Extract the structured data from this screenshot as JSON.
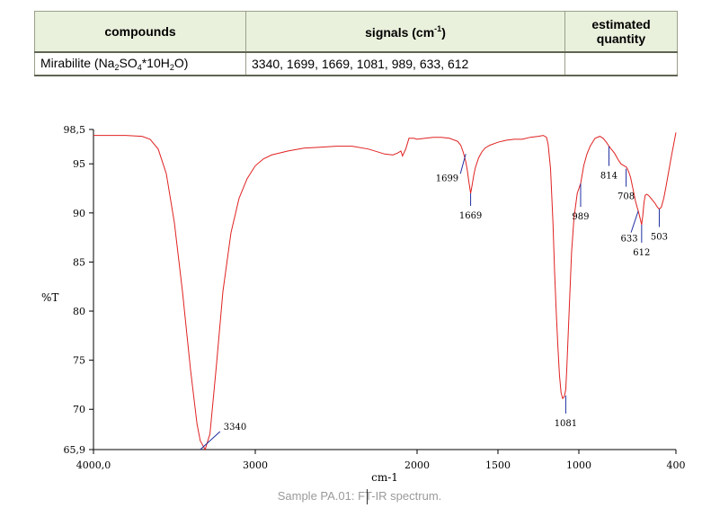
{
  "table": {
    "headers": {
      "compounds": "compounds",
      "signals_text": "signals (cm",
      "signals_sup": "-1",
      "signals_close": ")",
      "estimated_line1": "estimated",
      "estimated_line2": "quantity"
    },
    "row": {
      "compound_parts": [
        "Mirabilite (Na",
        "2",
        "SO",
        "4",
        "*10H",
        "2",
        "O)"
      ],
      "signals": "3340, 1699, 1669, 1081, 989, 633, 612",
      "estimated": ""
    }
  },
  "caption": "Sample PA.01: FT-IR spectrum.",
  "chart_data": {
    "type": "line",
    "title": "",
    "xlabel": "cm-1",
    "ylabel": "%T",
    "xlim": [
      4000,
      400
    ],
    "ylim": [
      65.9,
      98.5
    ],
    "x_reversed": true,
    "grid": false,
    "x_ticks": [
      4000,
      3000,
      2000,
      1500,
      1000,
      400
    ],
    "x_tick_labels": [
      "4000,0",
      "3000",
      "2000",
      "1500",
      "1000",
      "400"
    ],
    "y_ticks": [
      98.5,
      95,
      90,
      85,
      80,
      75,
      70,
      65.9
    ],
    "y_tick_labels": [
      "98,5",
      "95",
      "90",
      "85",
      "80",
      "75",
      "70",
      "65,9"
    ],
    "line_color": "#e02020",
    "marker_color": "#1f2fa0",
    "series": [
      {
        "x": [
          4000,
          3800,
          3700,
          3650,
          3600,
          3550,
          3500,
          3450,
          3400,
          3360,
          3340,
          3310,
          3280,
          3240,
          3200,
          3150,
          3100,
          3050,
          3000,
          2950,
          2900,
          2800,
          2700,
          2600,
          2500,
          2400,
          2300,
          2200,
          2150,
          2120,
          2100,
          2090,
          2070,
          2050,
          2020,
          2000,
          1950,
          1900,
          1850,
          1800,
          1750,
          1730,
          1715,
          1700,
          1690,
          1680,
          1669,
          1660,
          1650,
          1640,
          1620,
          1600,
          1580,
          1550,
          1500,
          1450,
          1400,
          1350,
          1300,
          1250,
          1220,
          1200,
          1190,
          1175,
          1160,
          1150,
          1140,
          1130,
          1120,
          1110,
          1100,
          1090,
          1081,
          1075,
          1065,
          1055,
          1045,
          1030,
          1010,
          989,
          970,
          950,
          930,
          900,
          870,
          850,
          830,
          814,
          800,
          780,
          760,
          740,
          720,
          708,
          700,
          690,
          680,
          670,
          660,
          650,
          640,
          633,
          625,
          618,
          612,
          605,
          598,
          590,
          580,
          570,
          560,
          545,
          530,
          515,
          503,
          490,
          475,
          460,
          445,
          430,
          415,
          400
        ],
        "y": [
          97.9,
          97.9,
          97.8,
          97.5,
          96.5,
          94.0,
          89.0,
          82.0,
          74.0,
          68.5,
          66.8,
          65.9,
          67.5,
          74.5,
          82.0,
          88.0,
          91.5,
          93.5,
          94.8,
          95.5,
          95.9,
          96.3,
          96.6,
          96.7,
          96.8,
          96.8,
          96.5,
          96.0,
          95.9,
          96.1,
          96.3,
          95.8,
          96.5,
          97.6,
          97.6,
          97.5,
          97.6,
          97.7,
          97.7,
          97.6,
          97.3,
          96.9,
          96.2,
          95.3,
          94.4,
          93.2,
          92.0,
          92.8,
          93.8,
          94.6,
          95.6,
          96.2,
          96.6,
          96.9,
          97.2,
          97.4,
          97.5,
          97.5,
          97.7,
          97.8,
          97.9,
          97.7,
          97.0,
          94.5,
          89.0,
          84.0,
          80.0,
          76.5,
          73.5,
          71.7,
          71.1,
          71.3,
          72.0,
          74.0,
          78.0,
          82.0,
          86.0,
          89.5,
          92.0,
          93.0,
          94.8,
          96.0,
          96.8,
          97.6,
          97.8,
          97.6,
          97.2,
          96.8,
          96.5,
          96.1,
          95.5,
          95.0,
          94.8,
          94.7,
          94.5,
          94.1,
          93.6,
          92.8,
          92.0,
          91.2,
          90.6,
          90.2,
          89.7,
          89.2,
          88.8,
          89.7,
          91.0,
          91.8,
          91.9,
          91.8,
          91.6,
          91.3,
          91.0,
          90.6,
          90.4,
          90.6,
          91.5,
          92.8,
          94.2,
          95.6,
          96.9,
          98.2
        ]
      }
    ],
    "annotations": [
      {
        "label": "3340",
        "x": 3340,
        "y": 65.9
      },
      {
        "label": "1699",
        "x": 1699,
        "y": 96.0
      },
      {
        "label": "1669",
        "x": 1669,
        "y": 92.0
      },
      {
        "label": "1081",
        "x": 1081,
        "y": 71.4
      },
      {
        "label": "989",
        "x": 989,
        "y": 93.0
      },
      {
        "label": "814",
        "x": 814,
        "y": 96.8
      },
      {
        "label": "708",
        "x": 708,
        "y": 94.5
      },
      {
        "label": "633",
        "x": 633,
        "y": 90.2
      },
      {
        "label": "612",
        "x": 612,
        "y": 88.8
      },
      {
        "label": "503",
        "x": 503,
        "y": 90.4
      }
    ]
  }
}
